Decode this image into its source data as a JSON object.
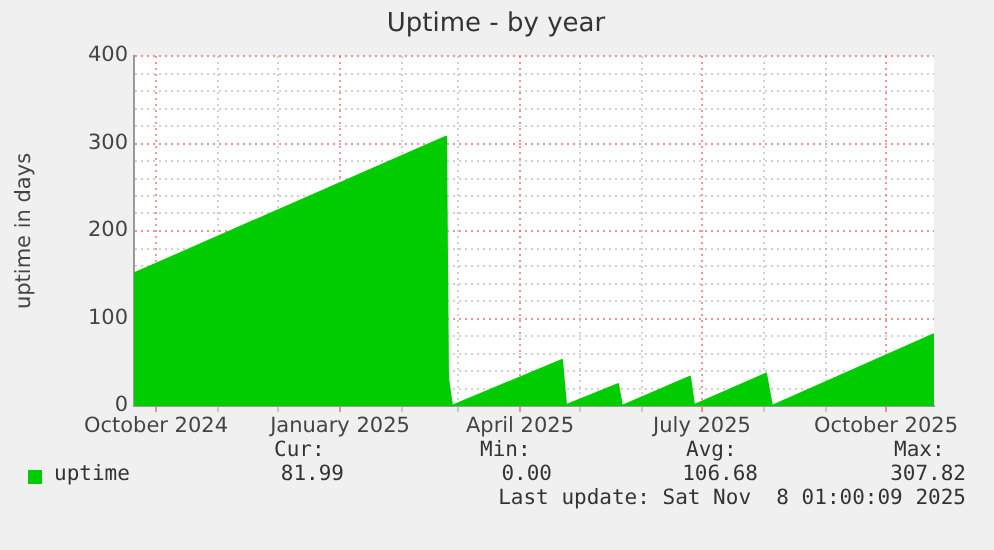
{
  "chart_data": {
    "type": "area",
    "title": "Uptime - by year",
    "ylabel": "uptime in days",
    "series": [
      {
        "name": "uptime",
        "color": "#00cc00",
        "x": [
          "2024-09-20",
          "2025-02-23",
          "2025-02-24",
          "2025-02-26",
          "2025-02-28",
          "2025-04-22",
          "2025-04-24",
          "2025-05-20",
          "2025-05-22",
          "2025-06-25",
          "2025-06-27",
          "2025-08-02",
          "2025-08-05",
          "2025-10-25"
        ],
        "values": [
          151.5,
          307.8,
          32,
          0,
          2,
          52.6,
          1,
          25,
          0,
          33.5,
          1,
          37,
          0,
          82
        ]
      }
    ],
    "xlim": [
      "2024-09-20",
      "2025-10-25"
    ],
    "xticks": [
      {
        "value": "2024-10-01",
        "label": "October 2024"
      },
      {
        "value": "2024-11-01",
        "label": null
      },
      {
        "value": "2024-12-01",
        "label": null
      },
      {
        "value": "2025-01-01",
        "label": "January 2025"
      },
      {
        "value": "2025-02-01",
        "label": null
      },
      {
        "value": "2025-03-01",
        "label": null
      },
      {
        "value": "2025-04-01",
        "label": "April 2025"
      },
      {
        "value": "2025-05-01",
        "label": null
      },
      {
        "value": "2025-06-01",
        "label": null
      },
      {
        "value": "2025-07-01",
        "label": "July 2025"
      },
      {
        "value": "2025-08-01",
        "label": null
      },
      {
        "value": "2025-09-01",
        "label": null
      },
      {
        "value": "2025-10-01",
        "label": "October 2025"
      }
    ],
    "ylim": [
      0,
      400
    ],
    "yticks": [
      0,
      {
        "value": 20,
        "label": null
      },
      {
        "value": 40,
        "label": null
      },
      {
        "value": 60,
        "label": null
      },
      {
        "value": 80,
        "label": null
      },
      100,
      {
        "value": 120,
        "label": null
      },
      {
        "value": 140,
        "label": null
      },
      {
        "value": 160,
        "label": null
      },
      {
        "value": 180,
        "label": null
      },
      200,
      {
        "value": 220,
        "label": null
      },
      {
        "value": 240,
        "label": null
      },
      {
        "value": 260,
        "label": null
      },
      {
        "value": 280,
        "label": null
      },
      300,
      {
        "value": 320,
        "label": null
      },
      {
        "value": 340,
        "label": null
      },
      {
        "value": 360,
        "label": null
      },
      {
        "value": 380,
        "label": null
      },
      400
    ],
    "grid": true,
    "legend": "bottom",
    "marker": "none",
    "annotations": [
      "Cur:",
      "Min:",
      "Avg:",
      "Max:",
      "81.99",
      "0.00",
      "106.68",
      "307.82",
      "Last update: Sat Nov  8 01:00:09 2025"
    ]
  }
}
